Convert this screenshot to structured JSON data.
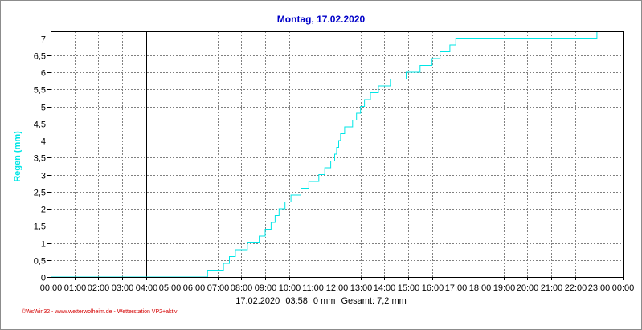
{
  "chart_data": {
    "type": "line",
    "title": "Montag, 17.02.2020",
    "ylabel": "Regen  (mm)",
    "xlabel": "",
    "ylim": [
      0,
      7.2
    ],
    "grid": true,
    "yticks": [
      "0",
      "0,5",
      "1",
      "1,5",
      "2",
      "2,5",
      "3",
      "3,5",
      "4",
      "4,5",
      "5",
      "5,5",
      "6",
      "6,5",
      "7"
    ],
    "xticks": [
      "00:00",
      "01:00",
      "02:00",
      "03:00",
      "04:00",
      "05:00",
      "06:00",
      "07:00",
      "08:00",
      "09:00",
      "10:00",
      "11:00",
      "12:00",
      "13:00",
      "14:00",
      "15:00",
      "16:00",
      "17:00",
      "18:00",
      "19:00",
      "20:00",
      "21:00",
      "22:00",
      "23:00",
      "00:00"
    ],
    "series": [
      {
        "color": "#00e6e6",
        "points": [
          [
            "00:00",
            0
          ],
          [
            "06:30",
            0
          ],
          [
            "06:35",
            0.2
          ],
          [
            "07:00",
            0.2
          ],
          [
            "07:15",
            0.4
          ],
          [
            "07:30",
            0.6
          ],
          [
            "07:45",
            0.8
          ],
          [
            "08:15",
            1.0
          ],
          [
            "08:45",
            1.2
          ],
          [
            "09:00",
            1.4
          ],
          [
            "09:15",
            1.6
          ],
          [
            "09:25",
            1.8
          ],
          [
            "09:35",
            2.0
          ],
          [
            "09:50",
            2.2
          ],
          [
            "10:05",
            2.4
          ],
          [
            "10:30",
            2.6
          ],
          [
            "10:50",
            2.8
          ],
          [
            "11:15",
            3.0
          ],
          [
            "11:30",
            3.2
          ],
          [
            "11:45",
            3.4
          ],
          [
            "11:55",
            3.6
          ],
          [
            "12:00",
            3.8
          ],
          [
            "12:05",
            4.0
          ],
          [
            "12:10",
            4.2
          ],
          [
            "12:20",
            4.4
          ],
          [
            "12:40",
            4.6
          ],
          [
            "12:50",
            4.8
          ],
          [
            "13:00",
            5.0
          ],
          [
            "13:10",
            5.2
          ],
          [
            "13:25",
            5.4
          ],
          [
            "13:45",
            5.6
          ],
          [
            "14:15",
            5.8
          ],
          [
            "14:55",
            6.0
          ],
          [
            "15:30",
            6.2
          ],
          [
            "16:00",
            6.4
          ],
          [
            "16:20",
            6.6
          ],
          [
            "16:45",
            6.8
          ],
          [
            "17:00",
            7.0
          ],
          [
            "22:50",
            7.0
          ],
          [
            "22:55",
            7.2
          ],
          [
            "24:00",
            7.2
          ]
        ]
      }
    ],
    "marker_line": "04:00",
    "status": {
      "date": "17.02.2020",
      "time": "03:58",
      "current": "0 mm",
      "total": "Gesamt: 7,2 mm"
    }
  },
  "footer": {
    "credit": "©WsWin32 - www.wetterwolheim.de - Wetterstation VP2+aktiv"
  },
  "colors": {
    "title": "#0000c8",
    "series": "#00e6e6",
    "credit": "#d40000"
  }
}
